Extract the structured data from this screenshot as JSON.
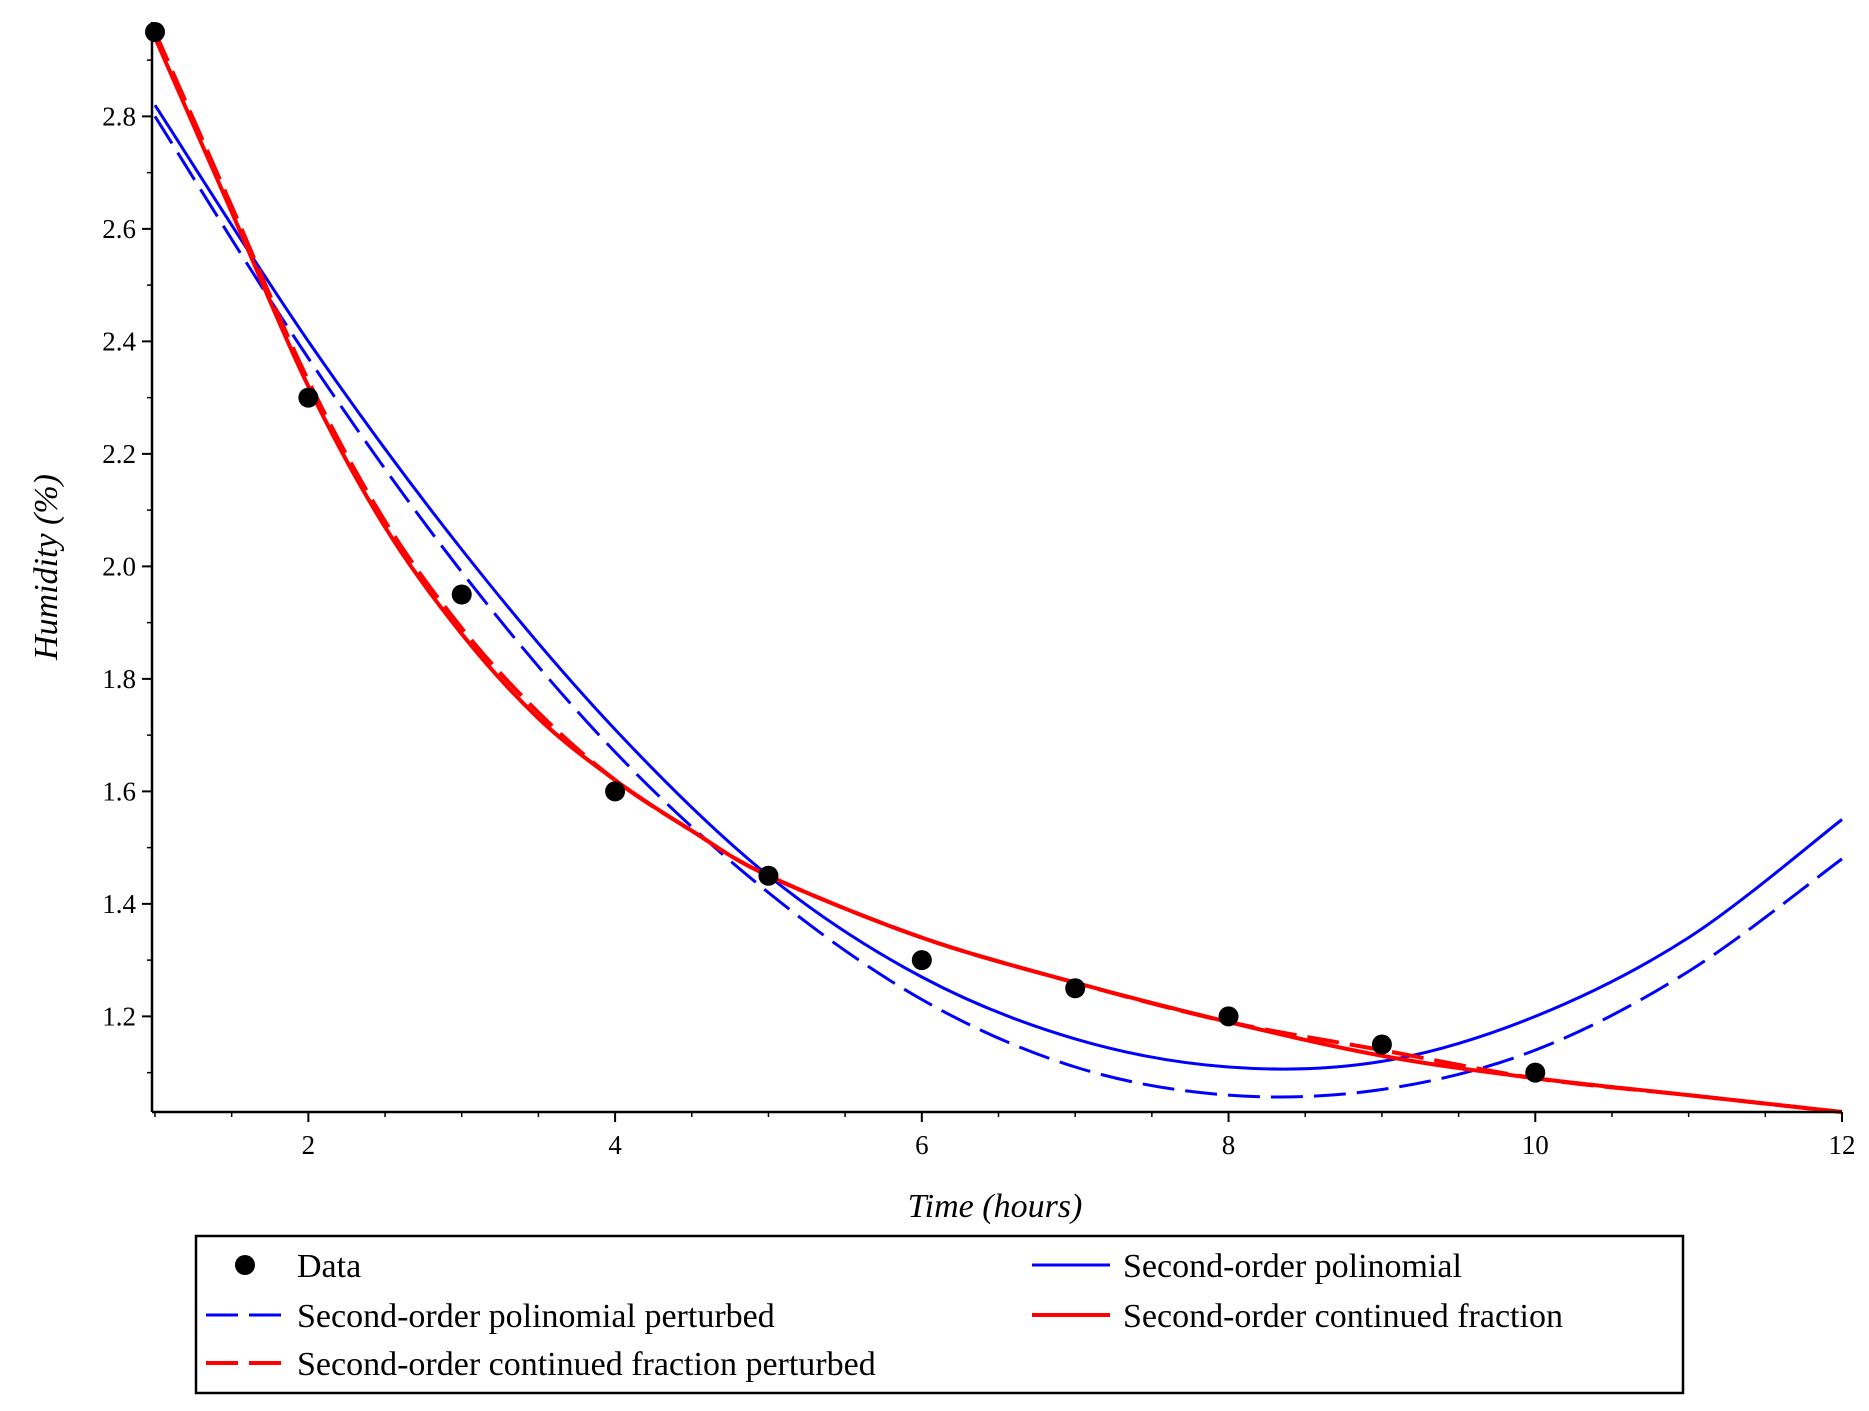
{
  "chart_data": {
    "type": "line",
    "title": "",
    "xlabel": "Time (hours)",
    "ylabel": "Humidity (%)",
    "xlim": [
      1,
      12
    ],
    "ylim": [
      1.03,
      2.95
    ],
    "grid": false,
    "x_ticks": [
      2,
      4,
      6,
      8,
      10,
      12
    ],
    "x_tick_labels": [
      "2",
      "4",
      "6",
      "8",
      "10",
      "12"
    ],
    "y_ticks": [
      1.2,
      1.4,
      1.6,
      1.8,
      2.0,
      2.2,
      2.4,
      2.6,
      2.8
    ],
    "y_tick_labels": [
      "1.2",
      "1.4",
      "1.6",
      "1.8",
      "2.0",
      "2.2",
      "2.4",
      "2.6",
      "2.8"
    ],
    "legend_position": "bottom",
    "series": [
      {
        "name": "Data",
        "kind": "scatter",
        "color": "#000000",
        "x": [
          1,
          2,
          3,
          4,
          5,
          6,
          7,
          8,
          9,
          10
        ],
        "y": [
          2.95,
          2.3,
          1.95,
          1.6,
          1.45,
          1.3,
          1.25,
          1.2,
          1.15,
          1.1
        ]
      },
      {
        "name": "Second-order polinomial",
        "kind": "line",
        "style": "solid",
        "color": "#0000ff",
        "x": [
          1,
          2,
          3,
          4,
          5,
          6,
          7,
          8,
          9,
          10,
          11,
          12
        ],
        "y": [
          2.82,
          2.4,
          2.03,
          1.71,
          1.45,
          1.27,
          1.16,
          1.11,
          1.12,
          1.2,
          1.34,
          1.55
        ]
      },
      {
        "name": "Second-order polinomial perturbed",
        "kind": "line",
        "style": "dashed",
        "color": "#0000ff",
        "x": [
          1,
          2,
          3,
          4,
          5,
          6,
          7,
          8,
          9,
          10,
          11,
          12
        ],
        "y": [
          2.8,
          2.37,
          1.99,
          1.67,
          1.42,
          1.23,
          1.11,
          1.06,
          1.07,
          1.14,
          1.28,
          1.48
        ]
      },
      {
        "name": "Second-order continued fraction",
        "kind": "line",
        "style": "solid",
        "color": "#ff0000",
        "x": [
          1,
          1.5,
          2,
          2.5,
          3,
          3.5,
          4,
          4.5,
          5,
          6,
          7,
          8,
          9,
          10,
          11,
          12
        ],
        "y": [
          2.94,
          2.63,
          2.32,
          2.07,
          1.88,
          1.73,
          1.62,
          1.53,
          1.45,
          1.34,
          1.26,
          1.19,
          1.13,
          1.09,
          1.06,
          1.03
        ]
      },
      {
        "name": "Second-order continued fraction perturbed",
        "kind": "line",
        "style": "dashed",
        "color": "#ff0000",
        "x": [
          1,
          1.5,
          2,
          2.5,
          3,
          3.5,
          4,
          4.5,
          5,
          6,
          7,
          8,
          9,
          10,
          11,
          12
        ],
        "y": [
          2.95,
          2.64,
          2.33,
          2.08,
          1.89,
          1.74,
          1.62,
          1.53,
          1.45,
          1.34,
          1.26,
          1.19,
          1.14,
          1.09,
          1.06,
          1.03
        ]
      }
    ]
  },
  "legend": {
    "entries": [
      {
        "label": "Data",
        "marker": "dot",
        "color": "#000000"
      },
      {
        "label": "Second-order polinomial",
        "marker": "solid",
        "color": "#0000ff"
      },
      {
        "label": "Second-order polinomial perturbed",
        "marker": "dashed",
        "color": "#0000ff"
      },
      {
        "label": "Second-order continued fraction",
        "marker": "solid",
        "color": "#ff0000"
      },
      {
        "label": "Second-order continued fraction perturbed",
        "marker": "dashed",
        "color": "#ff0000"
      }
    ]
  }
}
